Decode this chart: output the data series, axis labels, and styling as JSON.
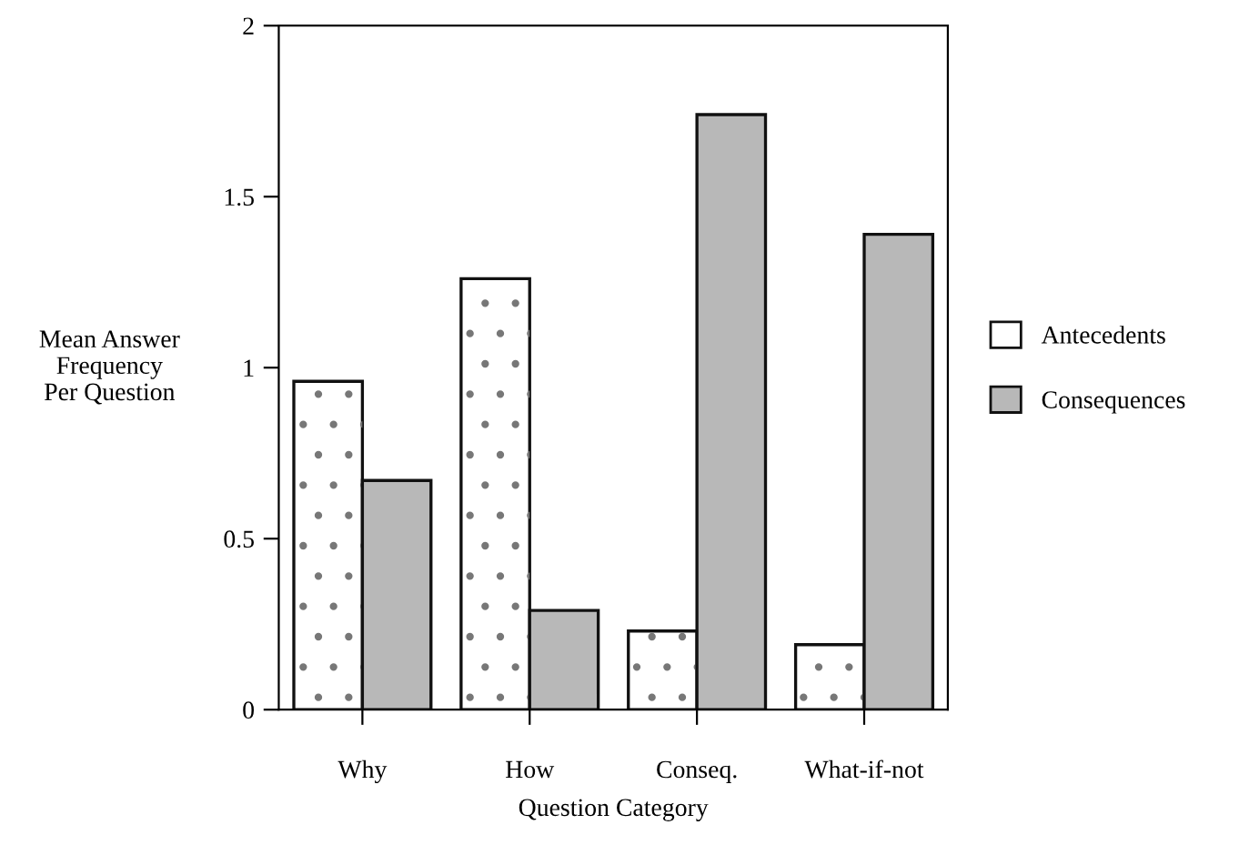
{
  "chart_data": {
    "type": "bar",
    "xlabel": "Question Category",
    "ylabel": "Mean Answer\nFrequency\nPer Question",
    "categories": [
      "Why",
      "How",
      "Conseq.",
      "What-if-not"
    ],
    "series": [
      {
        "name": "Antecedents",
        "color": "#ffffff",
        "values": [
          0.96,
          1.26,
          0.23,
          0.19
        ]
      },
      {
        "name": "Consequences",
        "color": "#b8b8b8",
        "values": [
          0.67,
          0.29,
          1.74,
          1.39
        ]
      }
    ],
    "ylim": [
      0,
      2
    ],
    "yticks": [
      0,
      0.5,
      1,
      1.5,
      2
    ],
    "grid": false,
    "legend": "right"
  }
}
